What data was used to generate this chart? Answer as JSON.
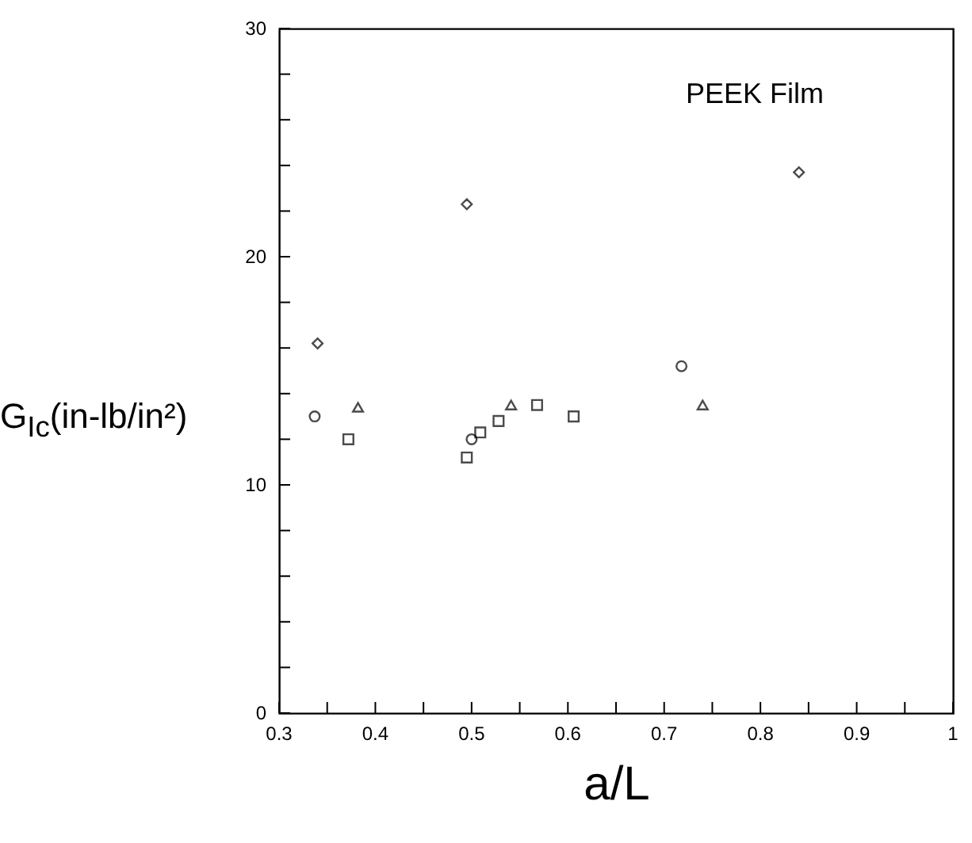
{
  "chart_data": {
    "type": "scatter",
    "xlabel": "a/L",
    "ylabel": "G$_{Ic}$(in-lb/in²)",
    "annotations": [
      "PEEK Film"
    ],
    "xlim": [
      0.3,
      1
    ],
    "ylim": [
      0,
      30
    ],
    "xticks": [
      0.3,
      {
        "value": 0.35,
        "label": null
      },
      0.4,
      {
        "value": 0.45,
        "label": null
      },
      0.5,
      {
        "value": 0.55,
        "label": null
      },
      0.6,
      {
        "value": 0.65,
        "label": null
      },
      0.7,
      {
        "value": 0.75,
        "label": null
      },
      0.8,
      {
        "value": 0.85,
        "label": null
      },
      0.9,
      {
        "value": 0.95,
        "label": null
      },
      1
    ],
    "yticks": [
      0,
      {
        "value": 2,
        "label": null
      },
      {
        "value": 4,
        "label": null
      },
      {
        "value": 6,
        "label": null
      },
      {
        "value": 8,
        "label": null
      },
      10,
      {
        "value": 12,
        "label": null
      },
      {
        "value": 14,
        "label": null
      },
      {
        "value": 16,
        "label": null
      },
      {
        "value": 18,
        "label": null
      },
      20,
      {
        "value": 22,
        "label": null
      },
      {
        "value": 24,
        "label": null
      },
      {
        "value": 26,
        "label": null
      },
      {
        "value": 28,
        "label": null
      },
      30
    ],
    "series": [
      {
        "marker": "diamond",
        "color": "#000000",
        "x": [
          0.34,
          0.495,
          0.84
        ],
        "values": [
          16.2,
          22.3,
          23.7
        ]
      },
      {
        "marker": "circle",
        "color": "#000000",
        "x": [
          0.337,
          0.5,
          0.718
        ],
        "values": [
          13.0,
          12.0,
          15.2
        ]
      },
      {
        "marker": "triangle",
        "color": "#000000",
        "x": [
          0.382,
          0.541,
          0.74
        ],
        "values": [
          13.4,
          13.5,
          13.5
        ]
      },
      {
        "marker": "square",
        "color": "#000000",
        "x": [
          0.372,
          0.495,
          0.509,
          0.528,
          0.568,
          0.606
        ],
        "values": [
          12.0,
          11.2,
          12.3,
          12.8,
          13.5,
          13.0
        ]
      }
    ]
  }
}
